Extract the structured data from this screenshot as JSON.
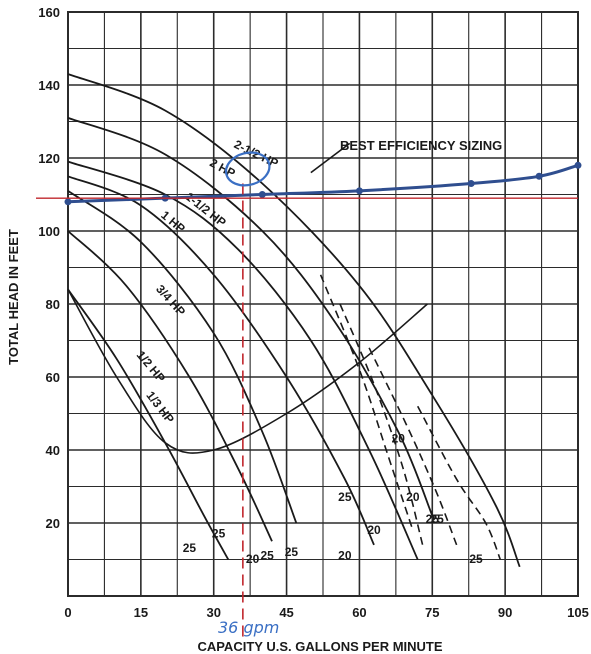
{
  "chart_data": {
    "type": "line",
    "title": "",
    "xlabel": "CAPACITY U.S. GALLONS PER MINUTE",
    "ylabel": "TOTAL HEAD IN FEET",
    "xlim": [
      0,
      105
    ],
    "ylim": [
      0,
      160
    ],
    "x_ticks": [
      "0",
      "15",
      "30",
      "45",
      "60",
      "75",
      "90",
      "105"
    ],
    "x_tick_values": [
      0,
      15,
      30,
      45,
      60,
      75,
      90,
      105
    ],
    "y_ticks": [
      "20",
      "40",
      "60",
      "80",
      "100",
      "120",
      "140",
      "160"
    ],
    "y_tick_values": [
      20,
      40,
      60,
      80,
      100,
      120,
      140,
      160
    ],
    "grid": true,
    "series": [
      {
        "name": "1/3 HP",
        "x": [
          0,
          10,
          20,
          28,
          33
        ],
        "y": [
          84,
          65,
          42,
          22,
          10
        ]
      },
      {
        "name": "1/2 HP",
        "x": [
          0,
          12,
          25,
          35,
          42
        ],
        "y": [
          100,
          85,
          60,
          35,
          15
        ]
      },
      {
        "name": "3/4 HP",
        "x": [
          0,
          15,
          30,
          40,
          47
        ],
        "y": [
          111,
          97,
          72,
          45,
          20
        ]
      },
      {
        "name": "1 HP",
        "x": [
          0,
          15,
          30,
          45,
          57,
          63
        ],
        "y": [
          115,
          107,
          88,
          60,
          32,
          14
        ]
      },
      {
        "name": "1-1/2 HP",
        "x": [
          0,
          20,
          35,
          50,
          62,
          72
        ],
        "y": [
          119,
          110,
          95,
          70,
          40,
          10
        ]
      },
      {
        "name": "2 HP",
        "x": [
          0,
          20,
          40,
          55,
          68,
          75
        ],
        "y": [
          131,
          121,
          100,
          75,
          45,
          22
        ]
      },
      {
        "name": "2-1/2 HP",
        "x": [
          0,
          20,
          40,
          60,
          75,
          88,
          93
        ],
        "y": [
          143,
          133,
          113,
          85,
          55,
          25,
          8
        ]
      }
    ],
    "best_efficiency_sizing": {
      "x": [
        0,
        20,
        40,
        60,
        83,
        97,
        105
      ],
      "y": [
        108,
        109,
        110,
        111,
        113,
        115,
        118
      ]
    },
    "sizing_line_y": 109,
    "sizing_line_x": 36,
    "region_labels": [
      "25",
      "25",
      "25",
      "25",
      "20",
      "20",
      "25",
      "20",
      "20",
      "25",
      "25",
      "20",
      "25"
    ],
    "annotations": {
      "best_efficiency": "BEST EFFICIENCY SIZING",
      "handwritten_flow": "36 gpm"
    },
    "colors": {
      "curves": "#1a1a1a",
      "grid": "#2b2b2b",
      "best_efficiency_line": "#2f4e8f",
      "sizing_marker": "#c1272d",
      "handwriting": "#3a6fc4"
    }
  }
}
